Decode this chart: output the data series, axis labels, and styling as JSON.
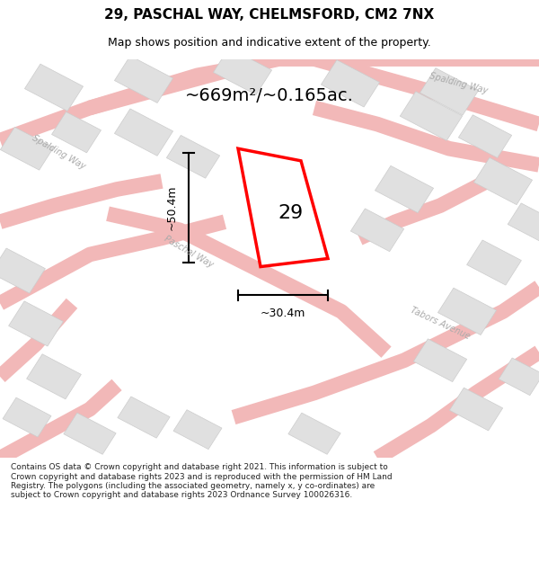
{
  "title": "29, PASCHAL WAY, CHELMSFORD, CM2 7NX",
  "subtitle": "Map shows position and indicative extent of the property.",
  "area_text": "~669m²/~0.165ac.",
  "width_label": "~30.4m",
  "height_label": "~50.4m",
  "plot_number": "29",
  "footer_text": "Contains OS data © Crown copyright and database right 2021. This information is subject to Crown copyright and database rights 2023 and is reproduced with the permission of HM Land Registry. The polygons (including the associated geometry, namely x, y co-ordinates) are subject to Crown copyright and database rights 2023 Ordnance Survey 100026316.",
  "bg_color": "#f5f5f5",
  "map_bg": "#ffffff",
  "road_color_light": "#f5c0c0",
  "road_color_main": "#f08080",
  "building_color": "#e0e0e0",
  "building_edge": "#cccccc",
  "plot_color": "#ffffff",
  "plot_edge": "#ff0000",
  "street_label_color": "#aaaaaa",
  "title_color": "#000000",
  "measure_color": "#000000"
}
